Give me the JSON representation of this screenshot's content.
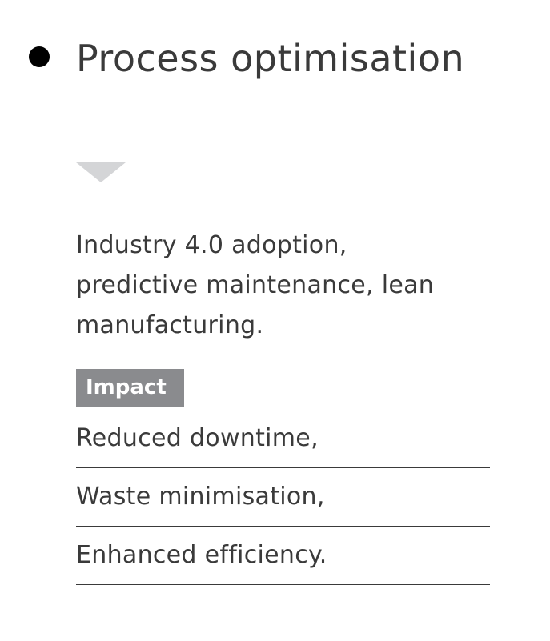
{
  "card": {
    "title": "Process optimisation",
    "expand_icon": "chevron-down-icon",
    "description": "Industry 4.0 adoption, predictive maintenance, lean manufacturing.",
    "impact_label": "Impact",
    "impact_items": [
      "Reduced downtime,",
      "Waste minimisation,",
      "Enhanced efficiency."
    ]
  },
  "colors": {
    "text": "#3a3a3a",
    "bullet": "#000000",
    "chevron": "#d4d5d7",
    "badge_background": "#8a8b8e",
    "badge_text": "#ffffff",
    "divider": "#3a3a3a"
  }
}
